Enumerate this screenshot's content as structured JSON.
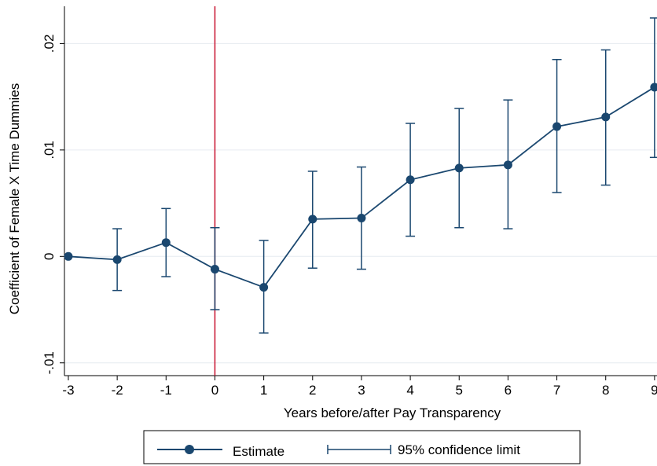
{
  "chart_data": {
    "type": "line",
    "xlabel": "Years before/after Pay Transparency",
    "ylabel": "Coefficient of Female X Time Dummies",
    "x": [
      -3,
      -2,
      -1,
      0,
      1,
      2,
      3,
      4,
      5,
      6,
      7,
      8,
      9
    ],
    "x_tick_labels": [
      "-3",
      "-2",
      "-1",
      "0",
      "1",
      "2",
      "3",
      "4",
      "5",
      "6",
      "7",
      "8",
      "9"
    ],
    "y_ticks": [
      -0.01,
      0,
      0.01,
      0.02
    ],
    "y_tick_labels": [
      "-.01",
      "0",
      ".01",
      ".02"
    ],
    "xlim": [
      -3.08,
      9.05
    ],
    "ylim": [
      -0.0112,
      0.0235
    ],
    "grid": true,
    "reference_line": {
      "x": 0,
      "color": "#c8102e"
    },
    "series": [
      {
        "name": "Estimate",
        "color": "#1a476f",
        "values": [
          0.0,
          -0.0003,
          0.0013,
          -0.0012,
          -0.0029,
          0.0035,
          0.0036,
          0.0072,
          0.0083,
          0.0086,
          0.0122,
          0.0131,
          0.0159
        ]
      },
      {
        "name": "95% confidence limit",
        "color": "#1a476f",
        "lower": [
          0.0,
          -0.0032,
          -0.0019,
          -0.005,
          -0.0072,
          -0.0011,
          -0.0012,
          0.0019,
          0.0027,
          0.0026,
          0.006,
          0.0067,
          0.0093
        ],
        "upper": [
          0.0,
          0.0026,
          0.0045,
          0.0027,
          0.0015,
          0.008,
          0.0084,
          0.0125,
          0.0139,
          0.0147,
          0.0185,
          0.0194,
          0.0224
        ]
      }
    ],
    "legend": {
      "position": "bottom",
      "entries": [
        "Estimate",
        "95% confidence limit"
      ]
    }
  }
}
